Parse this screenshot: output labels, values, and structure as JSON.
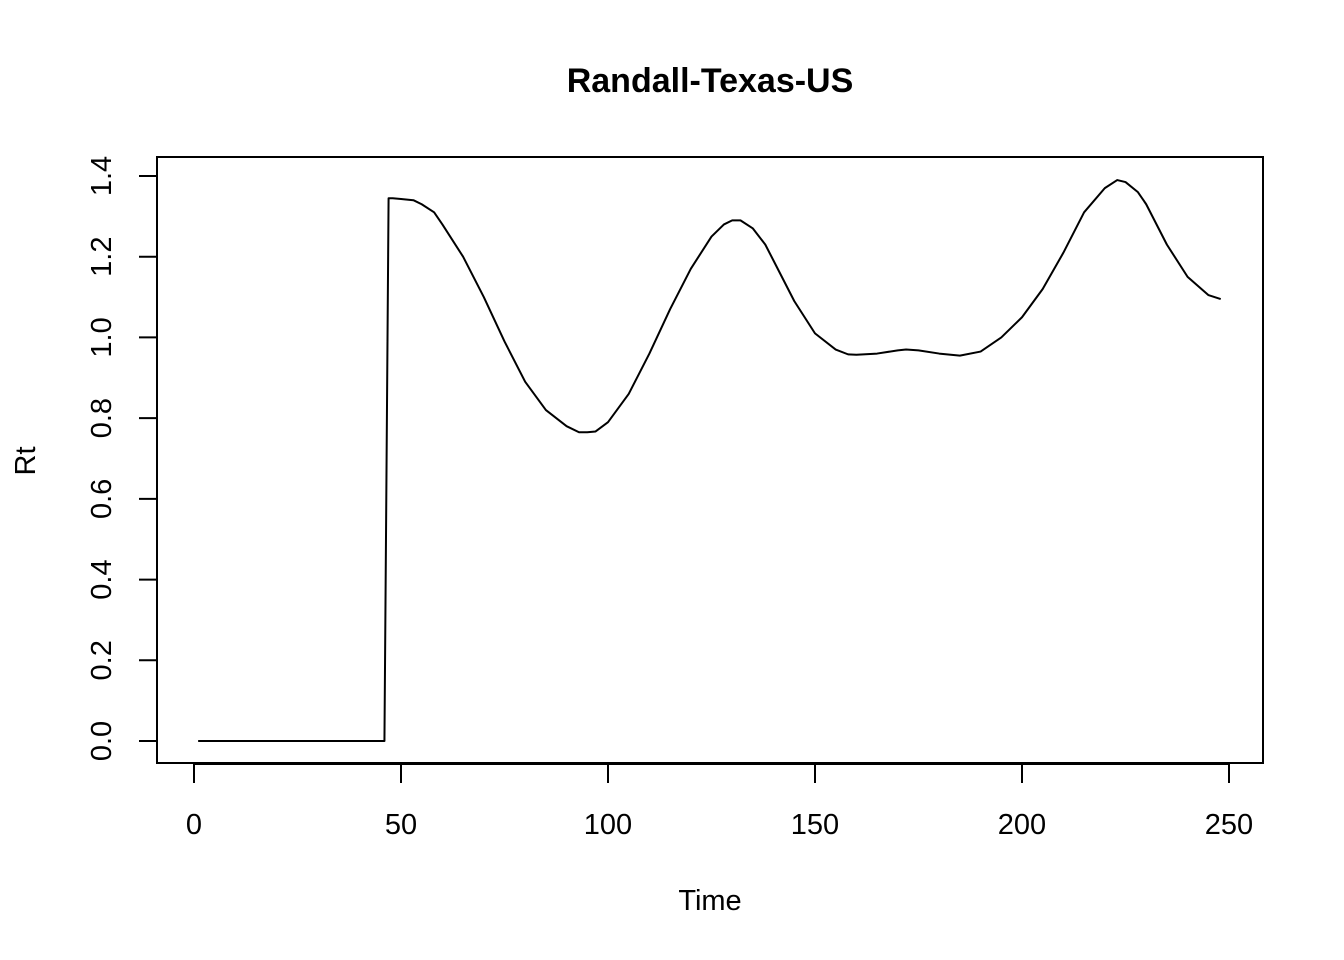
{
  "chart_data": {
    "type": "line",
    "title": "Randall-Texas-US",
    "xlabel": "Time",
    "ylabel": "Rt",
    "xlim": [
      1,
      248
    ],
    "ylim": [
      0,
      1.4
    ],
    "xticks": [
      0,
      50,
      100,
      150,
      200,
      250
    ],
    "yticks": [
      0.0,
      0.2,
      0.4,
      0.6,
      0.8,
      1.0,
      1.2,
      1.4
    ],
    "ytick_labels": [
      "0.0",
      "0.2",
      "0.4",
      "0.6",
      "0.8",
      "1.0",
      "1.2",
      "1.4"
    ],
    "grid": false,
    "line_color": "#000000",
    "series": [
      {
        "x": [
          1,
          10,
          20,
          30,
          40,
          46,
          47,
          48,
          50,
          53,
          55,
          58,
          60,
          65,
          70,
          75,
          80,
          85,
          90,
          93,
          95,
          97,
          100,
          105,
          110,
          115,
          120,
          125,
          128,
          130,
          132,
          135,
          138,
          140,
          145,
          150,
          155,
          158,
          160,
          165,
          170,
          172,
          175,
          180,
          185,
          190,
          195,
          200,
          205,
          210,
          215,
          220,
          223,
          225,
          228,
          230,
          235,
          240,
          245,
          248
        ],
        "y": [
          0,
          0,
          0,
          0,
          0,
          0,
          1.345,
          1.345,
          1.343,
          1.34,
          1.33,
          1.31,
          1.28,
          1.2,
          1.1,
          0.99,
          0.89,
          0.82,
          0.78,
          0.765,
          0.765,
          0.767,
          0.79,
          0.86,
          0.96,
          1.07,
          1.17,
          1.25,
          1.28,
          1.29,
          1.29,
          1.27,
          1.23,
          1.19,
          1.09,
          1.01,
          0.97,
          0.958,
          0.957,
          0.96,
          0.968,
          0.97,
          0.968,
          0.96,
          0.955,
          0.965,
          1.0,
          1.05,
          1.12,
          1.21,
          1.31,
          1.37,
          1.39,
          1.385,
          1.36,
          1.33,
          1.23,
          1.15,
          1.105,
          1.095
        ]
      }
    ]
  }
}
